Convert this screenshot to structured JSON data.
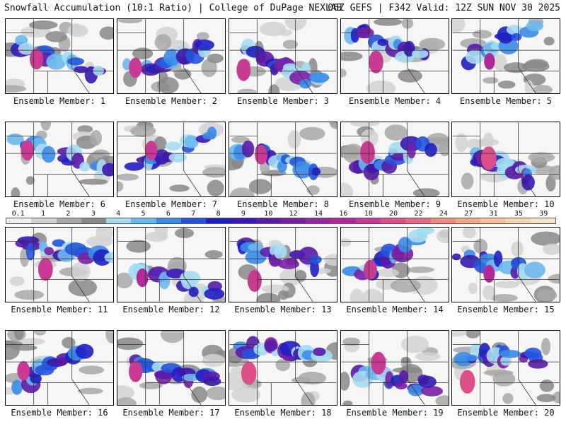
{
  "header": {
    "left": "Snowfall Accumulation (10:1 Ratio) | College of DuPage NEXLAB",
    "right": "06Z GEFS | F342 Valid: 12Z SUN NOV 30 2025"
  },
  "colors": {
    "bg": "#ffffff",
    "panel_bg": "#f6f6f6",
    "border": "#222222",
    "state_lines": "#333333"
  },
  "colorbar": {
    "ticks": [
      "0.1",
      "1",
      "2",
      "3",
      "4",
      "5",
      "6",
      "7",
      "8",
      "9",
      "10",
      "12",
      "14",
      "16",
      "18",
      "20",
      "22",
      "24",
      "27",
      "31",
      "35",
      "39"
    ],
    "colors": [
      "#f0f0f0",
      "#d2d2d2",
      "#a8a8a8",
      "#888888",
      "#a6dcf2",
      "#6ab8ee",
      "#3a8ce8",
      "#2255dd",
      "#1f1fc4",
      "#3a16b4",
      "#5a1aaa",
      "#7a1fa6",
      "#9524a0",
      "#b02a9a",
      "#c93a92",
      "#dc4f8a",
      "#e56a84",
      "#ee8c82",
      "#f2a88a",
      "#f6c09a",
      "#f8d6b0",
      "#f9e5c8"
    ]
  },
  "members": [
    {
      "label": "Ensemble Member: 1",
      "intensity": 0.6
    },
    {
      "label": "Ensemble Member: 2",
      "intensity": 0.55
    },
    {
      "label": "Ensemble Member: 3",
      "intensity": 0.65
    },
    {
      "label": "Ensemble Member: 4",
      "intensity": 0.7
    },
    {
      "label": "Ensemble Member: 5",
      "intensity": 0.35
    },
    {
      "label": "Ensemble Member: 6",
      "intensity": 0.55
    },
    {
      "label": "Ensemble Member: 7",
      "intensity": 0.5
    },
    {
      "label": "Ensemble Member: 8",
      "intensity": 0.5
    },
    {
      "label": "Ensemble Member: 9",
      "intensity": 0.7
    },
    {
      "label": "Ensemble Member: 10",
      "intensity": 0.75
    },
    {
      "label": "Ensemble Member: 11",
      "intensity": 0.7
    },
    {
      "label": "Ensemble Member: 12",
      "intensity": 0.45
    },
    {
      "label": "Ensemble Member: 13",
      "intensity": 0.65
    },
    {
      "label": "Ensemble Member: 14",
      "intensity": 0.55
    },
    {
      "label": "Ensemble Member: 15",
      "intensity": 0.4
    },
    {
      "label": "Ensemble Member: 16",
      "intensity": 0.5
    },
    {
      "label": "Ensemble Member: 17",
      "intensity": 0.6
    },
    {
      "label": "Ensemble Member: 18",
      "intensity": 0.75
    },
    {
      "label": "Ensemble Member: 19",
      "intensity": 0.7
    },
    {
      "label": "Ensemble Member: 20",
      "intensity": 0.75
    }
  ]
}
